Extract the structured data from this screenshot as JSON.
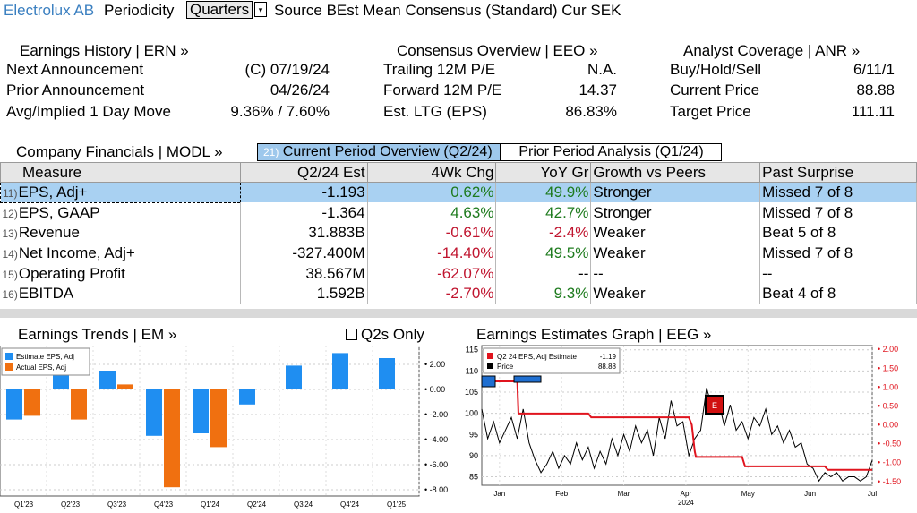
{
  "topbar": {
    "company": "Electrolux AB",
    "periodicity_label": "Periodicity",
    "periodicity_value": "Quarters",
    "dropdown_arrow": "▾",
    "source_text": "Source BEst Mean Consensus (Standard) Cur SEK"
  },
  "earnings_history": {
    "header": "Earnings History | ERN »",
    "rows": [
      {
        "label": "Next Announcement",
        "value": "(C)  07/19/24"
      },
      {
        "label": "Prior Announcement",
        "value": "04/26/24"
      },
      {
        "label": "Avg/Implied 1 Day Move",
        "value": "9.36% / 7.60%"
      }
    ]
  },
  "consensus_overview": {
    "header": "Consensus Overview | EEO »",
    "rows": [
      {
        "label": "Trailing 12M P/E",
        "value": "N.A."
      },
      {
        "label": "Forward 12M P/E",
        "value": "14.37"
      },
      {
        "label": "Est. LTG (EPS)",
        "value": "86.83%"
      }
    ]
  },
  "analyst_coverage": {
    "header": "Analyst Coverage | ANR »",
    "rows": [
      {
        "label": "Buy/Hold/Sell",
        "value": "6/11/1"
      },
      {
        "label": "Current Price",
        "value": "88.88"
      },
      {
        "label": "Target Price",
        "value": "111.11"
      }
    ]
  },
  "financials": {
    "header": "Company Financials | MODL »",
    "tab_current_index": "21)",
    "tab_current": "Current Period Overview (Q2/24)",
    "tab_prior": "Prior Period Analysis (Q1/24)",
    "columns": [
      "Measure",
      "Q2/24 Est",
      "4Wk Chg",
      "YoY Gr",
      "Growth vs Peers",
      "Past Surprise"
    ],
    "rows": [
      {
        "idx": "11)",
        "measure": "EPS, Adj+",
        "est": "-1.193",
        "chg": "0.62%",
        "chg_dir": "pos",
        "yoy": "49.9%",
        "yoy_dir": "pos",
        "peers": "Stronger",
        "surprise": "Missed 7 of 8"
      },
      {
        "idx": "12)",
        "measure": "EPS, GAAP",
        "est": "-1.364",
        "chg": "4.63%",
        "chg_dir": "pos",
        "yoy": "42.7%",
        "yoy_dir": "pos",
        "peers": "Stronger",
        "surprise": "Missed 7 of 8"
      },
      {
        "idx": "13)",
        "measure": "Revenue",
        "est": "31.883B",
        "chg": "-0.61%",
        "chg_dir": "neg",
        "yoy": "-2.4%",
        "yoy_dir": "neg",
        "peers": "Weaker",
        "surprise": "Beat 5 of 8"
      },
      {
        "idx": "14)",
        "measure": "Net Income, Adj+",
        "est": "-327.400M",
        "chg": "-14.40%",
        "chg_dir": "neg",
        "yoy": "49.5%",
        "yoy_dir": "pos",
        "peers": "Weaker",
        "surprise": "Missed 7 of 8"
      },
      {
        "idx": "15)",
        "measure": "Operating Profit",
        "est": "38.567M",
        "chg": "-62.07%",
        "chg_dir": "neg",
        "yoy": "--",
        "yoy_dir": "none",
        "peers": "--",
        "surprise": "--"
      },
      {
        "idx": "16)",
        "measure": "EBITDA",
        "est": "1.592B",
        "chg": "-2.70%",
        "chg_dir": "neg",
        "yoy": "9.3%",
        "yoy_dir": "pos",
        "peers": "Weaker",
        "surprise": "Beat 4 of 8"
      }
    ]
  },
  "earnings_trends": {
    "header": "Earnings Trends | EM »",
    "q2s_only": "Q2s Only"
  },
  "earnings_graph": {
    "header": "Earnings Estimates Graph | EEG »"
  },
  "colors": {
    "estimate": "#1f8ef1",
    "actual": "#f07010",
    "estimate_line": "#e0141e",
    "price_line": "#000000",
    "selected_row": "#a9d1f2",
    "positive": "#1e7b1e",
    "negative": "#c0152f"
  },
  "chart_data": [
    {
      "type": "bar",
      "legend": [
        "Estimate EPS, Adj",
        "Actual EPS, Adj"
      ],
      "legend_position": "top-left",
      "categories": [
        "Q1'23",
        "Q2'23",
        "Q3'23",
        "Q4'23",
        "Q1'24",
        "Q2'24",
        "Q3'24",
        "Q4'24",
        "Q1'25"
      ],
      "series": [
        {
          "name": "Estimate EPS, Adj",
          "values": [
            -2.4,
            1.3,
            1.5,
            -3.7,
            -3.5,
            -1.2,
            1.9,
            2.9,
            2.5
          ]
        },
        {
          "name": "Actual EPS, Adj",
          "values": [
            -2.1,
            -2.4,
            0.4,
            -7.8,
            -4.6,
            null,
            null,
            null,
            null
          ]
        }
      ],
      "y_ticks": [
        "2.00",
        "0.00",
        "-2.00",
        "-4.00",
        "-6.00",
        "-8.00"
      ],
      "ylim": [
        -8.5,
        3.5
      ],
      "y_axis_side": "right",
      "grid": true
    },
    {
      "type": "line",
      "legend": [
        {
          "label": "Q2 24 EPS, Adj Estimate",
          "value": "-1.19"
        },
        {
          "label": "Price",
          "value": "88.88"
        }
      ],
      "legend_position": "top-left",
      "x_ticks": [
        "Jan",
        "Feb",
        "Mar",
        "Apr",
        "May",
        "Jun",
        "Jul"
      ],
      "x_year": "2024",
      "left_ticks": [
        "115",
        "110",
        "105",
        "100",
        "95",
        "90",
        "85"
      ],
      "right_ticks": [
        "2.00",
        "1.50",
        "1.00",
        "0.50",
        "0.00",
        "-0.50",
        "-1.00",
        "-1.50"
      ],
      "left_ylim": [
        83,
        116
      ],
      "right_ylim": [
        -1.6,
        2.1
      ],
      "series": [
        {
          "name": "Q2 24 EPS, Adj Estimate",
          "axis": "right",
          "x": [
            0,
            0.6,
            0.62,
            1.8,
            1.85,
            3.5,
            3.55,
            3.6,
            3.62,
            4.4,
            4.45,
            5.8,
            5.85,
            6.5,
            6.6
          ],
          "y": [
            1.15,
            1.15,
            0.3,
            0.3,
            0.2,
            0.2,
            0.0,
            -0.7,
            -0.85,
            -0.85,
            -1.1,
            -1.1,
            -1.19,
            -1.19,
            -1.19
          ]
        },
        {
          "name": "Price",
          "axis": "left",
          "x": [
            0,
            0.1,
            0.2,
            0.3,
            0.4,
            0.5,
            0.6,
            0.7,
            0.8,
            0.9,
            1.0,
            1.1,
            1.2,
            1.3,
            1.4,
            1.5,
            1.6,
            1.7,
            1.8,
            1.9,
            2.0,
            2.1,
            2.2,
            2.3,
            2.4,
            2.5,
            2.6,
            2.7,
            2.8,
            2.9,
            3.0,
            3.1,
            3.2,
            3.3,
            3.4,
            3.5,
            3.6,
            3.7,
            3.8,
            3.9,
            4.0,
            4.1,
            4.2,
            4.3,
            4.4,
            4.5,
            4.6,
            4.7,
            4.8,
            4.9,
            5.0,
            5.1,
            5.2,
            5.3,
            5.4,
            5.5,
            5.6,
            5.7,
            5.8,
            5.9,
            6.0,
            6.1,
            6.2,
            6.3,
            6.4,
            6.5,
            6.6
          ],
          "y": [
            101,
            94,
            98,
            93,
            96,
            99,
            94,
            101,
            93,
            89,
            86,
            88,
            91,
            87,
            90,
            88,
            93,
            89,
            92,
            87,
            91,
            88,
            94,
            90,
            95,
            91,
            97,
            93,
            96,
            90,
            99,
            94,
            103,
            97,
            98,
            90,
            94,
            96,
            106,
            101,
            103,
            97,
            102,
            96,
            98,
            94,
            99,
            97,
            101,
            95,
            97,
            93,
            96,
            92,
            93,
            88,
            87,
            84,
            86,
            85,
            86,
            84,
            85,
            85,
            84,
            85,
            88.88
          ]
        }
      ],
      "annotations": [
        "E"
      ]
    }
  ]
}
